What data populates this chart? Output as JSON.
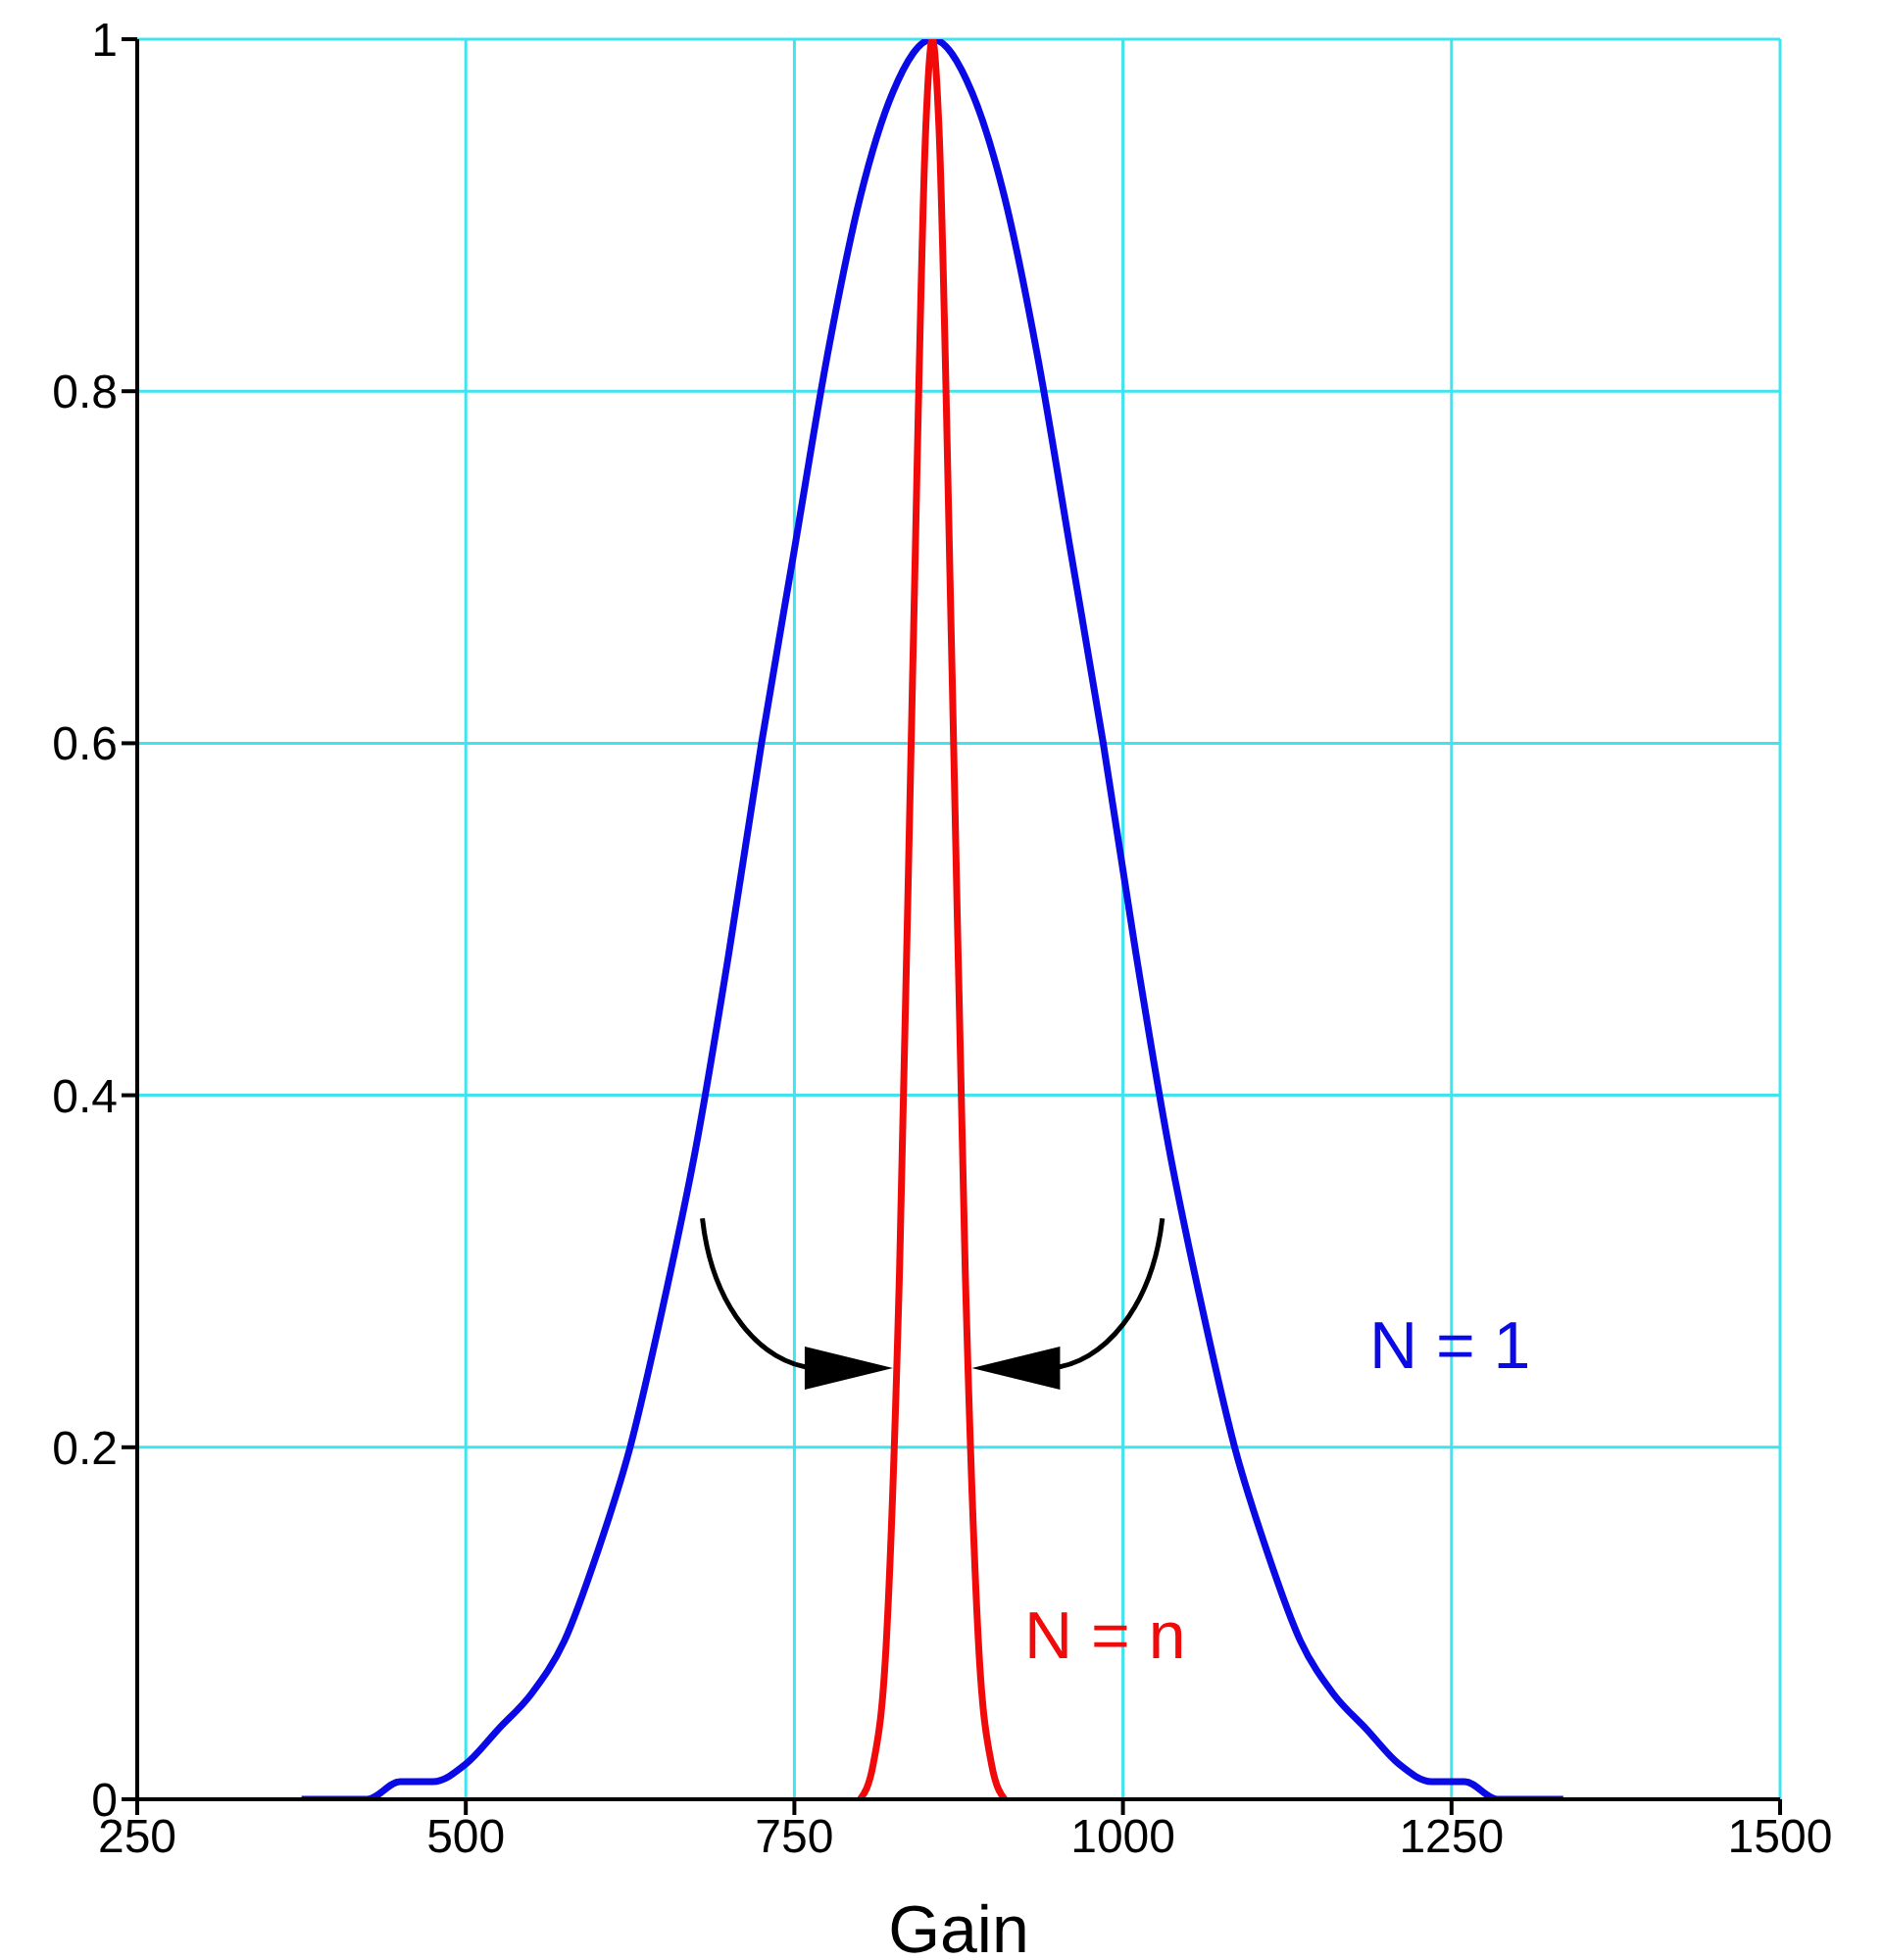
{
  "chart_data": {
    "type": "line",
    "xlabel": "Gain",
    "xlim": [
      250,
      1500
    ],
    "xticks": [
      250,
      500,
      750,
      1000,
      1250,
      1500
    ],
    "ylim": [
      0,
      1
    ],
    "yticks": [
      0,
      0.2,
      0.4,
      0.6,
      0.8,
      1
    ],
    "grid": true,
    "marker": "none",
    "line_style": "solid",
    "series": [
      {
        "name": "N = 1",
        "color": "#0a0ae6",
        "x": [
          375,
          400,
          425,
          450,
          475,
          500,
          525,
          550,
          575,
          600,
          625,
          650,
          675,
          700,
          725,
          750,
          775,
          800,
          825,
          855,
          885,
          910,
          935,
          960,
          985,
          1010,
          1035,
          1060,
          1085,
          1110,
          1135,
          1160,
          1185,
          1210,
          1235,
          1260,
          1285,
          1310,
          1335
        ],
        "values": [
          0,
          0,
          0,
          0.01,
          0.01,
          0.02,
          0.04,
          0.06,
          0.09,
          0.14,
          0.2,
          0.28,
          0.37,
          0.48,
          0.6,
          0.71,
          0.82,
          0.91,
          0.97,
          1,
          0.97,
          0.91,
          0.82,
          0.71,
          0.6,
          0.48,
          0.37,
          0.28,
          0.2,
          0.14,
          0.09,
          0.06,
          0.04,
          0.02,
          0.01,
          0.01,
          0,
          0,
          0
        ]
      },
      {
        "name": "N = n",
        "color": "#f00a0a",
        "x": [
          800,
          810,
          820,
          830,
          840,
          850,
          855,
          860,
          870,
          880,
          890,
          900,
          910
        ],
        "values": [
          0,
          0.02,
          0.09,
          0.3,
          0.64,
          0.95,
          1,
          0.95,
          0.64,
          0.3,
          0.09,
          0.02,
          0
        ]
      }
    ]
  }
}
